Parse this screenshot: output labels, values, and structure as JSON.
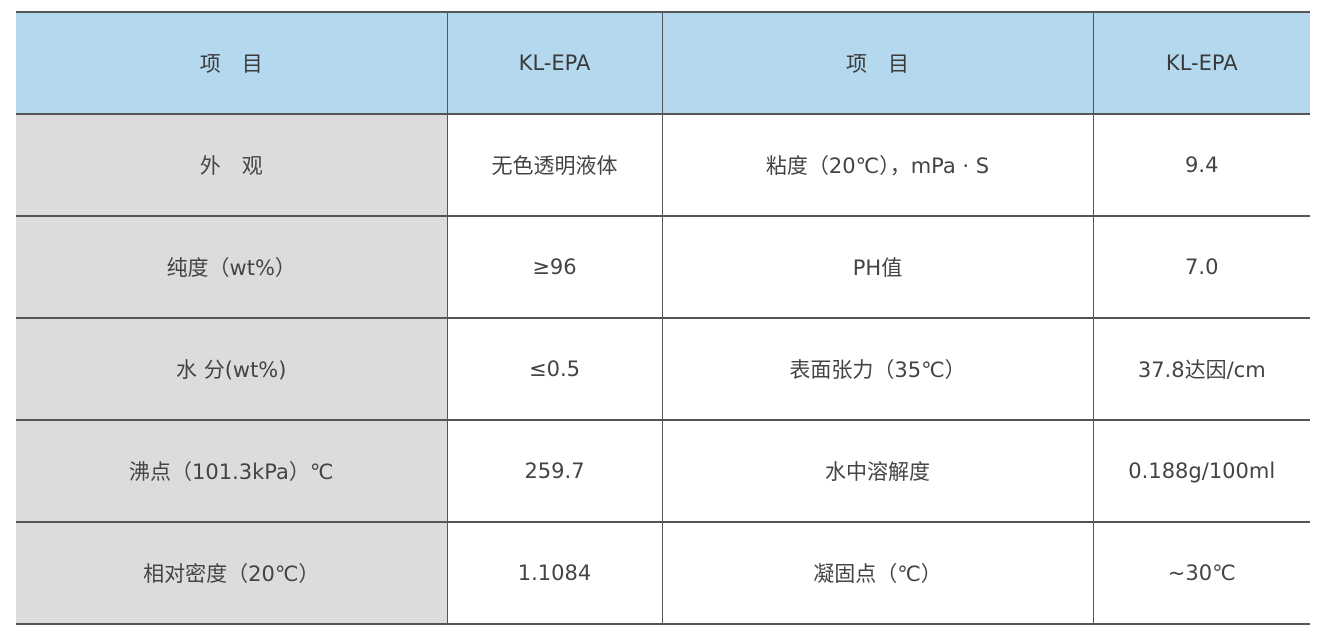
{
  "table": {
    "headers": [
      "项　目",
      "KL-EPA",
      "项　目",
      "KL-EPA"
    ],
    "rows": [
      [
        "外　观",
        "无色透明液体",
        "粘度（20℃），mPa · S",
        "9.4"
      ],
      [
        "纯度（wt%）",
        "≥96",
        "PH值",
        "7.0"
      ],
      [
        "水 分(wt%)",
        "≤0.5",
        "表面张力（35℃）",
        "37.8达因/cm"
      ],
      [
        "沸点（101.3kPa）℃",
        "259.7",
        "水中溶解度",
        "0.188g/100ml"
      ],
      [
        "相对密度（20℃）",
        "1.1084",
        "凝固点（℃）",
        "~30℃"
      ]
    ],
    "colors": {
      "header_bg": "#b4d9ee",
      "label_bg": "#dcdcdc",
      "border": "#555555"
    }
  }
}
